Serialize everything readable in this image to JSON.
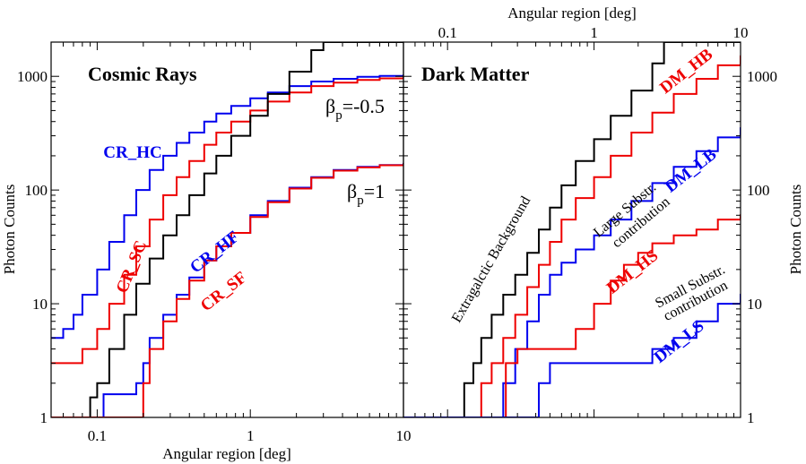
{
  "chart_data": [
    {
      "type": "line",
      "title": "Cosmic Rays",
      "xlabel": "Angular region [deg]",
      "ylabel": "Photon Counts",
      "x_scale": "log",
      "y_scale": "log",
      "xlim": [
        0.05,
        10
      ],
      "ylim": [
        1,
        2000
      ],
      "xticks": [
        "0.1",
        "1",
        "10"
      ],
      "yticks": [
        "1",
        "10",
        "100",
        "1000"
      ],
      "grid": false,
      "step": true,
      "annotations": [
        {
          "text": "CR_HC",
          "color": "#0000ee",
          "rotate": 0
        },
        {
          "text": "CR_SC",
          "color": "#ee0000",
          "rotate": -68
        },
        {
          "text": "CR_HF",
          "color": "#0000ee",
          "rotate": -38
        },
        {
          "text": "CR_SF",
          "color": "#ee0000",
          "rotate": -38
        },
        {
          "text": "β",
          "sub": "p",
          "suffix": "=-0.5",
          "color": "#000000",
          "rotate": 0
        },
        {
          "text": "β",
          "sub": "p",
          "suffix": "=1",
          "color": "#000000",
          "rotate": 0
        }
      ],
      "series": [
        {
          "label": "CR_HC",
          "color": "#0000ee",
          "x": [
            0.05,
            0.06,
            0.07,
            0.08,
            0.1,
            0.12,
            0.15,
            0.18,
            0.22,
            0.27,
            0.33,
            0.4,
            0.5,
            0.6,
            0.75,
            1,
            1.3,
            1.8,
            2.5,
            3.5,
            5,
            7,
            10
          ],
          "y": [
            5,
            6,
            8,
            12,
            20,
            35,
            60,
            100,
            150,
            200,
            260,
            320,
            400,
            470,
            550,
            640,
            720,
            820,
            900,
            950,
            990,
            1010,
            1020
          ]
        },
        {
          "label": "CR_SC",
          "color": "#ee0000",
          "x": [
            0.05,
            0.06,
            0.07,
            0.08,
            0.1,
            0.12,
            0.15,
            0.18,
            0.22,
            0.27,
            0.33,
            0.4,
            0.5,
            0.6,
            0.75,
            1,
            1.3,
            1.8,
            2.5,
            3.5,
            5,
            7,
            10
          ],
          "y": [
            3,
            3,
            3,
            4,
            6,
            10,
            18,
            32,
            55,
            90,
            130,
            180,
            250,
            320,
            400,
            500,
            600,
            720,
            820,
            880,
            930,
            960,
            980
          ]
        },
        {
          "label": "Extragalactic background",
          "color": "#000000",
          "x": [
            0.05,
            0.09,
            0.1,
            0.12,
            0.15,
            0.18,
            0.22,
            0.27,
            0.33,
            0.4,
            0.5,
            0.6,
            0.75,
            1,
            1.3,
            1.8,
            2.5,
            3
          ],
          "y": [
            1,
            1.5,
            2,
            4,
            8,
            15,
            25,
            40,
            60,
            90,
            140,
            200,
            300,
            450,
            700,
            1100,
            1700,
            2000
          ]
        },
        {
          "label": "CR_HF",
          "color": "#0000ee",
          "x": [
            0.05,
            0.09,
            0.11,
            0.15,
            0.18,
            0.2,
            0.22,
            0.27,
            0.33,
            0.4,
            0.5,
            0.6,
            0.75,
            1,
            1.3,
            1.8,
            2.5,
            3.5,
            5,
            7,
            10
          ],
          "y": [
            1,
            1,
            1.6,
            1.6,
            2,
            3,
            5,
            8,
            12,
            17,
            24,
            32,
            42,
            60,
            80,
            105,
            130,
            150,
            160,
            166,
            170
          ]
        },
        {
          "label": "CR_SF",
          "color": "#ee0000",
          "x": [
            0.05,
            0.18,
            0.2,
            0.22,
            0.27,
            0.33,
            0.4,
            0.5,
            0.6,
            0.75,
            1,
            1.3,
            1.8,
            2.5,
            3.5,
            5,
            7,
            10
          ],
          "y": [
            1,
            1,
            2,
            4,
            7,
            11,
            16,
            24,
            32,
            42,
            58,
            78,
            103,
            128,
            148,
            158,
            165,
            168
          ]
        }
      ]
    },
    {
      "type": "line",
      "title": "Dark Matter",
      "xlabel": "Angular region  [deg]",
      "ylabel": "Photon Counts",
      "x_scale": "log",
      "y_scale": "log",
      "xlim": [
        0.05,
        10
      ],
      "ylim": [
        1,
        2000
      ],
      "xticks": [
        "0.1",
        "1",
        "10"
      ],
      "yticks": [
        "1",
        "10",
        "100",
        "1000"
      ],
      "x_axis_position": "top",
      "y_axis_position": "right",
      "grid": false,
      "step": true,
      "annotations": [
        {
          "text": "DM_HB",
          "color": "#ee0000",
          "rotate": -38
        },
        {
          "text": "DM_LB",
          "color": "#0000ee",
          "rotate": -38
        },
        {
          "text": "DM_HS",
          "color": "#ee0000",
          "rotate": -38
        },
        {
          "text": "DM_LS",
          "color": "#0000ee",
          "rotate": -38
        },
        {
          "text": "Extragalctic Background",
          "color": "#000000",
          "rotate": -60
        },
        {
          "text": "Large Substr.",
          "color": "#000000",
          "rotate": -40
        },
        {
          "text": "contribution",
          "color": "#000000",
          "rotate": -40
        },
        {
          "text": "Small Substr.",
          "color": "#000000",
          "rotate": -28
        },
        {
          "text": "contribution",
          "color": "#000000",
          "rotate": -28
        }
      ],
      "series": [
        {
          "label": "Extragalactic background",
          "color": "#000000",
          "x": [
            0.05,
            0.12,
            0.13,
            0.15,
            0.17,
            0.2,
            0.24,
            0.29,
            0.35,
            0.42,
            0.5,
            0.6,
            0.75,
            1,
            1.3,
            1.8,
            2.5,
            3
          ],
          "y": [
            1,
            1,
            2,
            3,
            5,
            8,
            12,
            18,
            28,
            45,
            70,
            110,
            180,
            280,
            450,
            750,
            1300,
            2000
          ]
        },
        {
          "label": "DM_HB",
          "color": "#ee0000",
          "x": [
            0.05,
            0.15,
            0.17,
            0.2,
            0.24,
            0.29,
            0.35,
            0.42,
            0.5,
            0.6,
            0.75,
            1,
            1.3,
            1.8,
            2.5,
            3.5,
            5,
            7,
            10
          ],
          "y": [
            1,
            1,
            2,
            3,
            5,
            8,
            14,
            22,
            35,
            55,
            85,
            130,
            200,
            320,
            480,
            700,
            950,
            1250,
            1500
          ]
        },
        {
          "label": "DM_LB",
          "color": "#0000ee",
          "x": [
            0.05,
            0.2,
            0.24,
            0.29,
            0.35,
            0.42,
            0.5,
            0.6,
            0.75,
            1,
            1.3,
            1.8,
            2.5,
            3.5,
            5,
            7,
            10
          ],
          "y": [
            1,
            1,
            2,
            4,
            7,
            12,
            18,
            23,
            30,
            40,
            55,
            80,
            115,
            160,
            220,
            290,
            350
          ]
        },
        {
          "label": "DM_HS",
          "color": "#ee0000",
          "x": [
            0.05,
            0.21,
            0.25,
            0.3,
            0.6,
            0.75,
            0.85,
            1,
            1.1,
            1.3,
            1.6,
            2,
            2.5,
            3.5,
            5,
            7,
            10
          ],
          "y": [
            1,
            1,
            3,
            4,
            4,
            6,
            6,
            10,
            10,
            16,
            22,
            28,
            34,
            40,
            45,
            55,
            60
          ]
        },
        {
          "label": "DM_LS",
          "color": "#0000ee",
          "x": [
            0.05,
            0.36,
            0.42,
            0.5,
            0.8,
            1.2,
            1.8,
            2.5,
            3.5,
            5,
            7,
            10
          ],
          "y": [
            1,
            1,
            2,
            3,
            3,
            3,
            3,
            4,
            5,
            7,
            10,
            12
          ]
        }
      ]
    }
  ]
}
